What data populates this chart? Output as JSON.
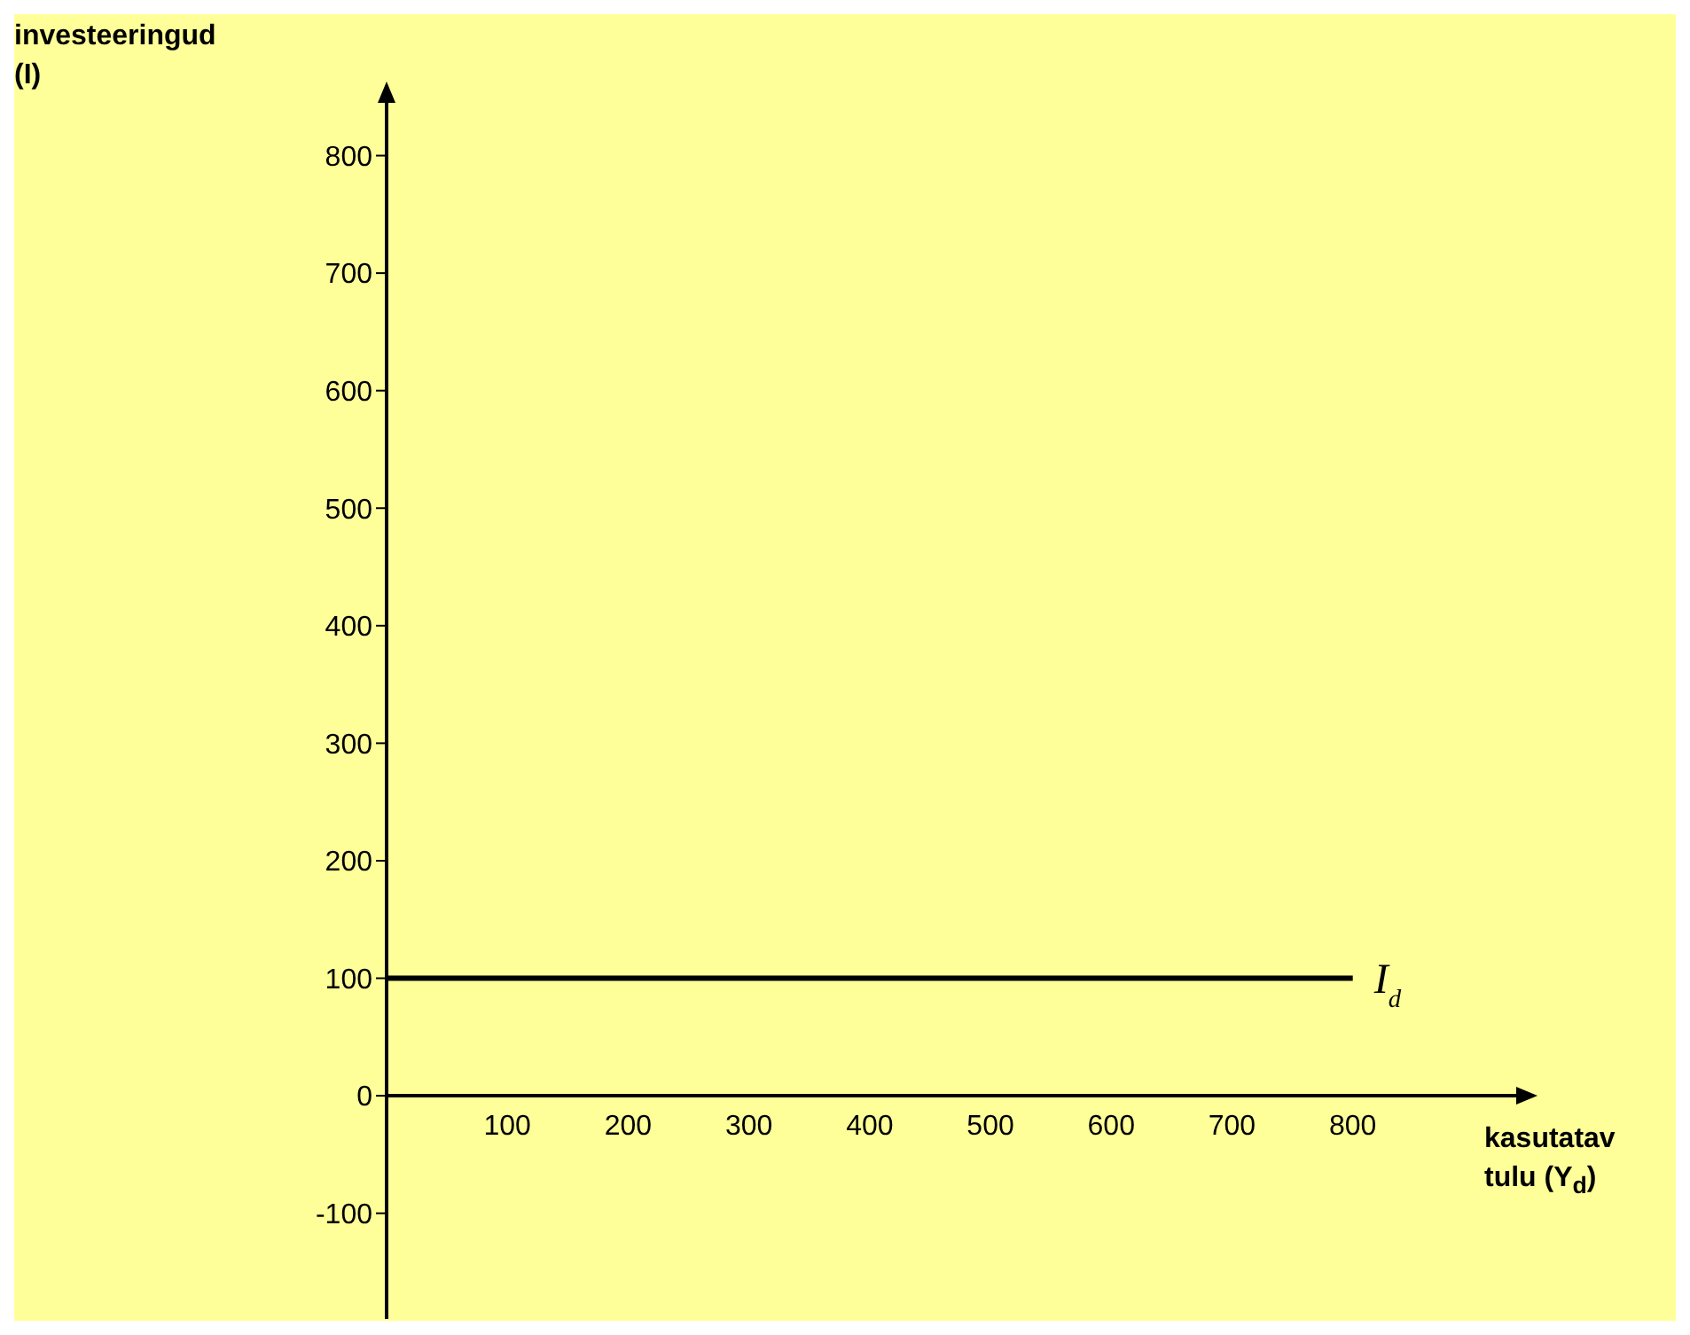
{
  "chart_data": {
    "type": "line",
    "ylabel": "investeeringud (I)",
    "xlabel": "kasutatav tulu (Y$_{d}$)",
    "x": [
      0,
      800
    ],
    "series": [
      {
        "color": "#000000",
        "values": [
          100,
          100
        ]
      }
    ],
    "xlim": [
      0,
      950
    ],
    "xticks": [
      100,
      200,
      300,
      400,
      500,
      600,
      700,
      800
    ],
    "ylim": [
      -190,
      860
    ],
    "yticks": [
      -100,
      0,
      100,
      200,
      300,
      400,
      500,
      600,
      700,
      800
    ],
    "annotations": [
      {
        "text": "I$_{d}$",
        "x": 800,
        "y": 100
      }
    ],
    "marker": "none",
    "line_style": "solid",
    "grid": false
  }
}
